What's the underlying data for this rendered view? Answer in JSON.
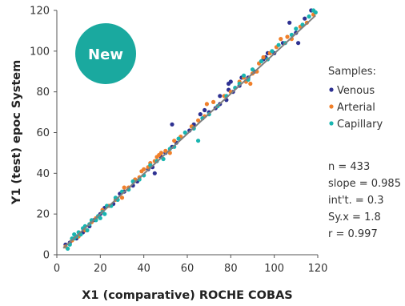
{
  "chart_data": {
    "type": "scatter",
    "xlabel": "X1 (comparative) ROCHE COBAS",
    "ylabel": "Y1 (test) epoc System",
    "xlim": [
      0,
      120
    ],
    "ylim": [
      0,
      120
    ],
    "x_ticks": [
      "0",
      "20",
      "40",
      "60",
      "80",
      "100",
      "120"
    ],
    "y_ticks": [
      "0",
      "20",
      "40",
      "60",
      "80",
      "100",
      "120"
    ],
    "grid": false,
    "badge": "New",
    "legend": {
      "title": "Samples:",
      "placement": "right",
      "entries": [
        "Venous",
        "Arterial",
        "Capillary"
      ]
    },
    "stats": [
      "n = 433",
      "slope = 0.985",
      "int't. = 0.3",
      "Sy.x = 1.8",
      "r = 0.997"
    ],
    "regression": {
      "slope": 0.985,
      "intercept": 0.3,
      "x_range": [
        3,
        119
      ]
    },
    "colors": {
      "Venous": "#2e3192",
      "Arterial": "#f07f2a",
      "Capillary": "#19b5b0",
      "regression_line": "#7f7f7f",
      "badge": "#1aa99f"
    },
    "series": [
      {
        "name": "Venous",
        "points": [
          [
            4,
            5
          ],
          [
            6,
            6
          ],
          [
            9,
            8
          ],
          [
            12,
            11
          ],
          [
            15,
            14
          ],
          [
            17,
            17
          ],
          [
            20,
            20
          ],
          [
            22,
            23
          ],
          [
            26,
            25
          ],
          [
            29,
            30
          ],
          [
            31,
            31
          ],
          [
            35,
            34
          ],
          [
            37,
            36
          ],
          [
            42,
            42
          ],
          [
            44,
            43
          ],
          [
            45,
            40
          ],
          [
            48,
            48
          ],
          [
            50,
            50
          ],
          [
            53,
            53
          ],
          [
            53,
            64
          ],
          [
            55,
            55
          ],
          [
            61,
            61
          ],
          [
            63,
            64
          ],
          [
            66,
            69
          ],
          [
            67,
            67
          ],
          [
            68,
            71
          ],
          [
            70,
            70
          ],
          [
            73,
            72
          ],
          [
            75,
            74
          ],
          [
            75,
            78
          ],
          [
            78,
            76
          ],
          [
            79,
            81
          ],
          [
            79,
            84
          ],
          [
            80,
            85
          ],
          [
            81,
            80
          ],
          [
            84,
            83
          ],
          [
            85,
            87
          ],
          [
            88,
            87
          ],
          [
            91,
            90
          ],
          [
            95,
            96
          ],
          [
            96,
            97
          ],
          [
            97,
            99
          ],
          [
            100,
            99
          ],
          [
            104,
            104
          ],
          [
            107,
            114
          ],
          [
            110,
            109
          ],
          [
            111,
            104
          ],
          [
            114,
            116
          ],
          [
            117,
            120
          ]
        ]
      },
      {
        "name": "Arterial",
        "points": [
          [
            4,
            4
          ],
          [
            7,
            7
          ],
          [
            10,
            9
          ],
          [
            13,
            12
          ],
          [
            16,
            16
          ],
          [
            18,
            18
          ],
          [
            21,
            22
          ],
          [
            24,
            24
          ],
          [
            27,
            27
          ],
          [
            30,
            28
          ],
          [
            31,
            33
          ],
          [
            33,
            33
          ],
          [
            36,
            37
          ],
          [
            38,
            38
          ],
          [
            39,
            41
          ],
          [
            40,
            42
          ],
          [
            42,
            43
          ],
          [
            43,
            45
          ],
          [
            45,
            46
          ],
          [
            46,
            48
          ],
          [
            47,
            49
          ],
          [
            48,
            50
          ],
          [
            50,
            51
          ],
          [
            52,
            50
          ],
          [
            54,
            56
          ],
          [
            57,
            58
          ],
          [
            62,
            63
          ],
          [
            65,
            66
          ],
          [
            68,
            68
          ],
          [
            69,
            74
          ],
          [
            72,
            75
          ],
          [
            77,
            78
          ],
          [
            80,
            80
          ],
          [
            84,
            85
          ],
          [
            86,
            87
          ],
          [
            87,
            85
          ],
          [
            89,
            84
          ],
          [
            90,
            89
          ],
          [
            92,
            90
          ],
          [
            93,
            94
          ],
          [
            95,
            97
          ],
          [
            98,
            99
          ],
          [
            101,
            102
          ],
          [
            103,
            106
          ],
          [
            106,
            107
          ],
          [
            108,
            106
          ],
          [
            112,
            112
          ],
          [
            115,
            114
          ],
          [
            118,
            118
          ]
        ]
      },
      {
        "name": "Capillary",
        "points": [
          [
            5,
            3
          ],
          [
            6,
            5
          ],
          [
            7,
            8
          ],
          [
            8,
            10
          ],
          [
            8,
            8
          ],
          [
            9,
            9
          ],
          [
            10,
            11
          ],
          [
            11,
            10
          ],
          [
            12,
            13
          ],
          [
            13,
            14
          ],
          [
            14,
            12
          ],
          [
            15,
            15
          ],
          [
            16,
            17
          ],
          [
            18,
            17
          ],
          [
            19,
            19
          ],
          [
            20,
            18
          ],
          [
            21,
            21
          ],
          [
            22,
            20
          ],
          [
            23,
            24
          ],
          [
            25,
            24
          ],
          [
            27,
            28
          ],
          [
            28,
            27
          ],
          [
            30,
            31
          ],
          [
            33,
            32
          ],
          [
            35,
            36
          ],
          [
            38,
            37
          ],
          [
            40,
            39
          ],
          [
            43,
            44
          ],
          [
            46,
            46
          ],
          [
            49,
            47
          ],
          [
            52,
            52
          ],
          [
            54,
            53
          ],
          [
            56,
            57
          ],
          [
            59,
            60
          ],
          [
            63,
            62
          ],
          [
            65,
            56
          ],
          [
            67,
            67
          ],
          [
            70,
            69
          ],
          [
            74,
            73
          ],
          [
            78,
            78
          ],
          [
            82,
            82
          ],
          [
            84,
            84
          ],
          [
            86,
            88
          ],
          [
            88,
            86
          ],
          [
            90,
            91
          ],
          [
            94,
            95
          ],
          [
            97,
            96
          ],
          [
            99,
            100
          ],
          [
            102,
            103
          ],
          [
            105,
            104
          ],
          [
            108,
            108
          ],
          [
            110,
            111
          ],
          [
            113,
            113
          ],
          [
            116,
            117
          ],
          [
            118,
            120
          ],
          [
            119,
            119
          ]
        ]
      }
    ]
  }
}
